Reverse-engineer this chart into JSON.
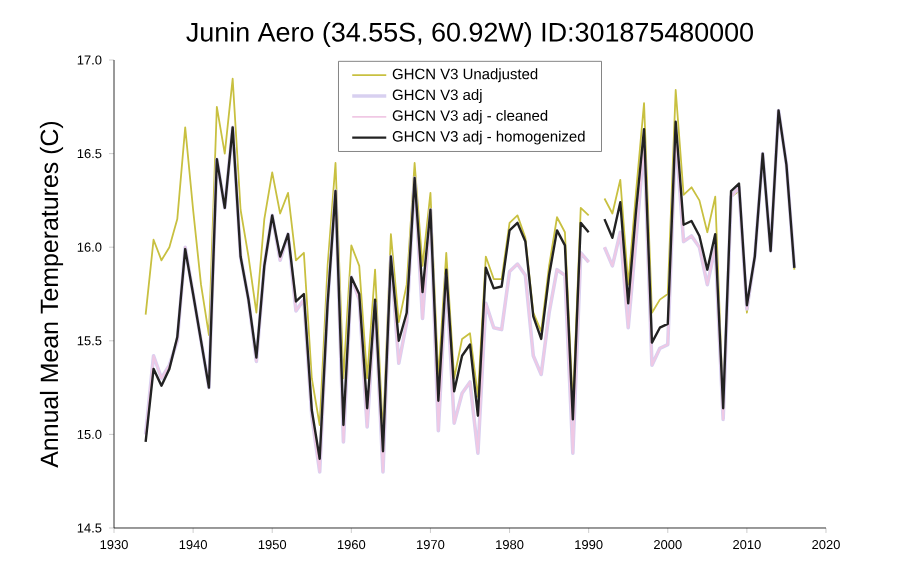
{
  "chart_data": {
    "type": "line",
    "title": "Junin Aero (34.55S, 60.92W) ID:301875480000",
    "ylabel": "Annual Mean Temperatures (C)",
    "x": [
      1934,
      1935,
      1936,
      1937,
      1938,
      1939,
      1940,
      1941,
      1942,
      1943,
      1944,
      1945,
      1946,
      1947,
      1948,
      1949,
      1950,
      1951,
      1952,
      1953,
      1954,
      1955,
      1956,
      1957,
      1958,
      1959,
      1960,
      1961,
      1962,
      1963,
      1964,
      1965,
      1966,
      1967,
      1968,
      1969,
      1970,
      1971,
      1972,
      1973,
      1974,
      1975,
      1976,
      1977,
      1978,
      1979,
      1980,
      1981,
      1982,
      1983,
      1984,
      1985,
      1986,
      1987,
      1988,
      1989,
      1990,
      1991,
      1992,
      1993,
      1994,
      1995,
      1996,
      1997,
      1998,
      1999,
      2000,
      2001,
      2002,
      2003,
      2004,
      2005,
      2006,
      2007,
      2008,
      2009,
      2010,
      2011,
      2012,
      2013,
      2014,
      2015,
      2016
    ],
    "series": [
      {
        "name": "GHCN V3 Unadjusted",
        "color": "#c8c040",
        "values": [
          15.64,
          16.04,
          15.93,
          16.0,
          16.15,
          16.64,
          16.2,
          15.8,
          15.53,
          16.75,
          16.5,
          16.9,
          16.2,
          15.95,
          15.65,
          16.15,
          16.4,
          16.18,
          16.29,
          15.93,
          15.97,
          15.3,
          15.05,
          15.9,
          16.45,
          15.3,
          16.01,
          15.9,
          15.3,
          15.88,
          15.0,
          16.07,
          15.6,
          15.8,
          16.45,
          15.9,
          16.29,
          15.3,
          15.97,
          15.3,
          15.51,
          15.54,
          15.2,
          15.95,
          15.83,
          15.83,
          16.13,
          16.17,
          16.05,
          15.65,
          15.55,
          15.9,
          16.16,
          16.08,
          15.15,
          16.21,
          16.17,
          null,
          16.26,
          16.18,
          16.36,
          15.8,
          16.3,
          16.77,
          15.65,
          15.72,
          15.75,
          16.84,
          16.28,
          16.32,
          16.25,
          16.08,
          16.27,
          15.15,
          16.27,
          16.3,
          15.65,
          15.95,
          16.5,
          16.0,
          16.72,
          16.45,
          15.88
        ]
      },
      {
        "name": "GHCN V3 adj",
        "color": "#d8d0f0",
        "values": [
          15.0,
          15.42,
          15.3,
          15.37,
          15.5,
          16.0,
          15.75,
          15.5,
          15.25,
          16.47,
          16.21,
          16.64,
          15.95,
          15.72,
          15.39,
          15.9,
          16.17,
          15.93,
          16.07,
          15.66,
          15.72,
          15.1,
          14.8,
          15.7,
          16.3,
          14.96,
          15.84,
          15.72,
          15.04,
          15.7,
          14.8,
          15.95,
          15.38,
          15.6,
          16.37,
          15.62,
          16.2,
          15.02,
          15.85,
          15.06,
          15.22,
          15.28,
          14.9,
          15.7,
          15.57,
          15.56,
          15.87,
          15.91,
          15.85,
          15.42,
          15.32,
          15.65,
          15.88,
          15.85,
          14.9,
          15.97,
          15.92,
          null,
          16.0,
          15.9,
          16.08,
          15.57,
          16.05,
          16.55,
          15.37,
          15.46,
          15.48,
          16.6,
          16.03,
          16.06,
          16.0,
          15.8,
          16.0,
          15.08,
          16.27,
          16.32,
          15.67,
          15.95,
          16.5,
          15.98,
          16.73,
          16.44,
          15.89
        ]
      },
      {
        "name": "GHCN V3 adj - cleaned",
        "color": "#f0c8e4",
        "values": [
          15.0,
          15.42,
          15.3,
          15.37,
          15.5,
          16.0,
          15.75,
          15.5,
          15.25,
          16.47,
          16.21,
          16.64,
          15.95,
          15.72,
          15.39,
          15.9,
          16.17,
          15.93,
          16.07,
          15.66,
          15.72,
          15.1,
          14.8,
          15.7,
          16.3,
          14.96,
          15.84,
          15.72,
          15.04,
          15.7,
          14.8,
          15.95,
          15.38,
          15.6,
          16.37,
          15.62,
          16.2,
          15.02,
          15.85,
          15.06,
          15.22,
          15.28,
          14.9,
          15.7,
          15.57,
          15.56,
          15.87,
          15.91,
          15.85,
          15.42,
          15.32,
          15.65,
          15.88,
          15.85,
          14.9,
          15.97,
          15.92,
          null,
          16.0,
          15.9,
          16.08,
          15.57,
          16.05,
          16.55,
          15.37,
          15.46,
          15.48,
          16.6,
          16.03,
          16.06,
          16.0,
          15.8,
          16.0,
          15.08,
          16.27,
          16.32,
          15.67,
          15.95,
          16.5,
          15.98,
          16.73,
          16.44,
          15.89
        ]
      },
      {
        "name": "GHCN V3 adj - homogenized",
        "color": "#222222",
        "values": [
          14.96,
          15.35,
          15.26,
          15.35,
          15.52,
          15.99,
          15.75,
          15.5,
          15.25,
          16.47,
          16.21,
          16.64,
          15.95,
          15.72,
          15.41,
          15.9,
          16.17,
          15.95,
          16.07,
          15.71,
          15.75,
          15.13,
          14.87,
          15.7,
          16.3,
          15.05,
          15.84,
          15.75,
          15.14,
          15.72,
          14.91,
          15.95,
          15.5,
          15.65,
          16.37,
          15.76,
          16.2,
          15.18,
          15.88,
          15.23,
          15.42,
          15.48,
          15.1,
          15.89,
          15.78,
          15.79,
          16.09,
          16.13,
          16.03,
          15.63,
          15.51,
          15.85,
          16.09,
          16.01,
          15.08,
          16.13,
          16.08,
          null,
          16.15,
          16.05,
          16.24,
          15.7,
          16.2,
          16.63,
          15.49,
          15.57,
          15.59,
          16.67,
          16.12,
          16.14,
          16.06,
          15.88,
          16.07,
          15.14,
          16.3,
          16.34,
          15.69,
          15.95,
          16.5,
          15.98,
          16.73,
          16.44,
          15.89
        ]
      }
    ],
    "xlim": [
      1930,
      2020
    ],
    "xticks": [
      1930,
      1940,
      1950,
      1960,
      1970,
      1980,
      1990,
      2000,
      2010,
      2020
    ],
    "ylim": [
      14.5,
      17.0
    ],
    "yticks": [
      14.5,
      {
        "value": 15,
        "label": "15.0"
      },
      15.5,
      {
        "value": 16,
        "label": "16.0"
      },
      16.5,
      {
        "value": 17,
        "label": "17.0"
      }
    ],
    "grid": false,
    "legend": "top",
    "marker": "none",
    "line_style": "solid"
  }
}
